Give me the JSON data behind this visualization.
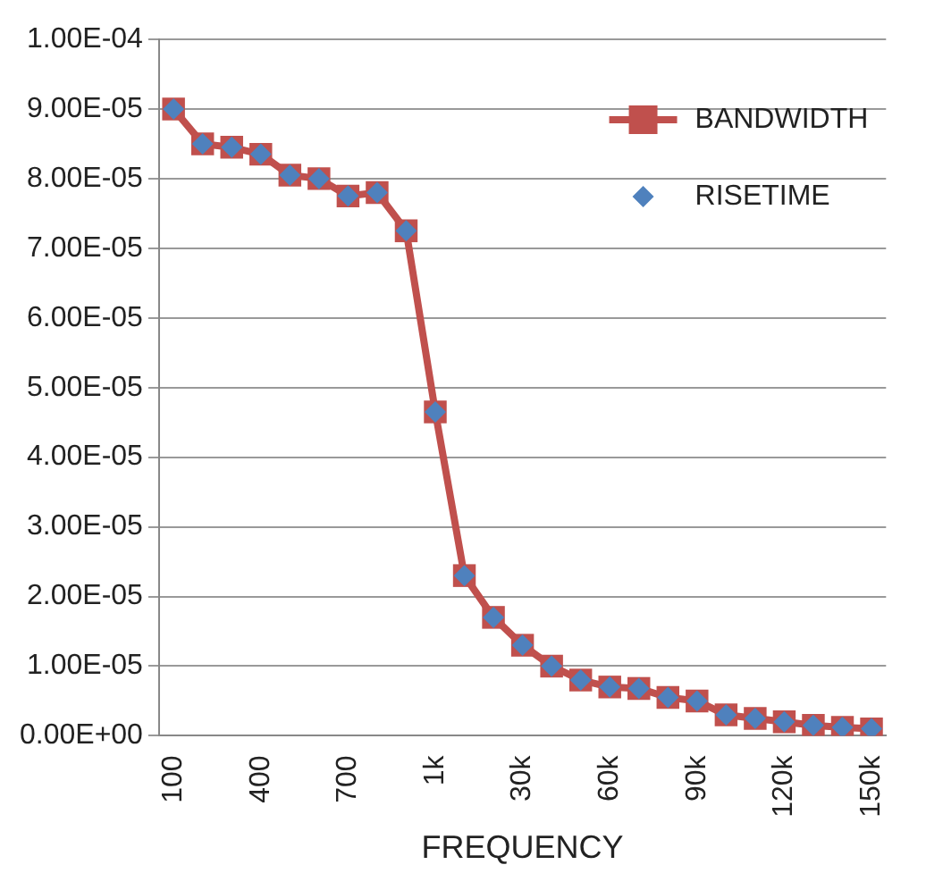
{
  "chart_data": {
    "type": "line",
    "xlabel": "FREQUENCY",
    "categories": [
      "100",
      null,
      null,
      "400",
      null,
      null,
      "700",
      null,
      null,
      "1k",
      null,
      null,
      "30k",
      null,
      null,
      "60k",
      null,
      null,
      "90k",
      null,
      null,
      "120k",
      null,
      null,
      "150k"
    ],
    "series": [
      {
        "name": "BANDWIDTH",
        "color": "#c0504d",
        "marker": "square",
        "values": [
          9e-05,
          8.5e-05,
          8.45e-05,
          8.35e-05,
          8.05e-05,
          8e-05,
          7.75e-05,
          7.8e-05,
          7.25e-05,
          4.65e-05,
          2.3e-05,
          1.7e-05,
          1.3e-05,
          1e-05,
          8e-06,
          7e-06,
          6.8e-06,
          5.5e-06,
          5e-06,
          3e-06,
          2.5e-06,
          2e-06,
          1.5e-06,
          1.2e-06,
          1e-06
        ]
      },
      {
        "name": "RISETIME",
        "type": "scatter",
        "color": "#4f81bd",
        "marker": "diamond",
        "values": [
          9e-05,
          8.5e-05,
          8.45e-05,
          8.35e-05,
          8.05e-05,
          8e-05,
          7.75e-05,
          7.8e-05,
          7.25e-05,
          4.65e-05,
          2.3e-05,
          1.7e-05,
          1.3e-05,
          1e-05,
          8e-06,
          7e-06,
          6.8e-06,
          5.5e-06,
          5e-06,
          3e-06,
          2.5e-06,
          2e-06,
          1.5e-06,
          1.2e-06,
          1e-06
        ]
      }
    ],
    "ylim": [
      0,
      0.0001
    ],
    "yticks": [
      {
        "value": 0,
        "label": "0.00E+00"
      },
      {
        "value": 1e-05,
        "label": "1.00E-05"
      },
      {
        "value": 2e-05,
        "label": "2.00E-05"
      },
      {
        "value": 3e-05,
        "label": "3.00E-05"
      },
      {
        "value": 4e-05,
        "label": "4.00E-05"
      },
      {
        "value": 5e-05,
        "label": "5.00E-05"
      },
      {
        "value": 6e-05,
        "label": "6.00E-05"
      },
      {
        "value": 7e-05,
        "label": "7.00E-05"
      },
      {
        "value": 8e-05,
        "label": "8.00E-05"
      },
      {
        "value": 9e-05,
        "label": "9.00E-05"
      },
      {
        "value": 0.0001,
        "label": "1.00E-04"
      }
    ],
    "grid": "y",
    "legend": "top right"
  }
}
